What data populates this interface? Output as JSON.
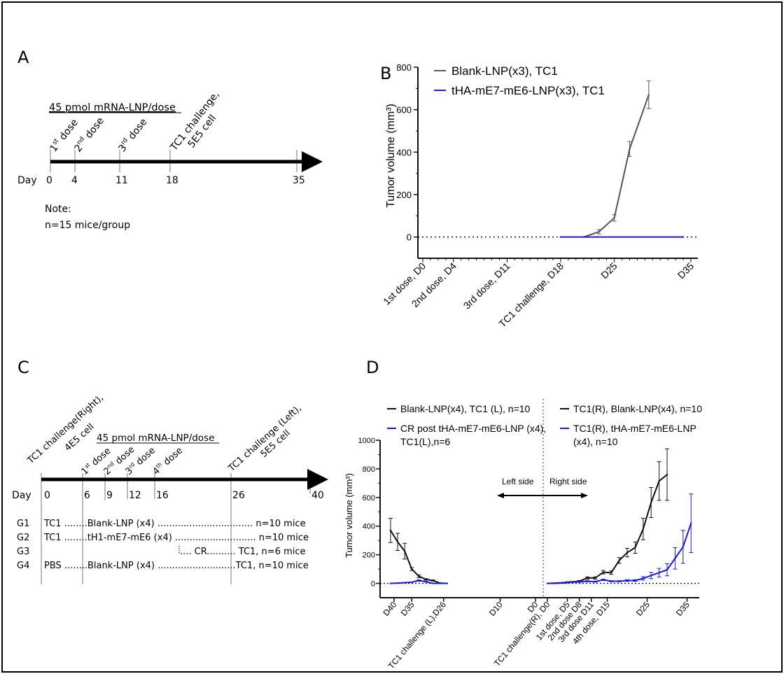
{
  "panel_a": {
    "letter": "A",
    "dose_header": "45 pmol mRNA-LNP/dose",
    "events": [
      {
        "num": "1",
        "sup": "st",
        "rest": " dose"
      },
      {
        "num": "2",
        "sup": "nd",
        "rest": " dose"
      },
      {
        "num": "3",
        "sup": "rd",
        "rest": " dose"
      },
      {
        "line1": "TC1 challenge,",
        "line2": "5E5 cell"
      }
    ],
    "day_label": "Day",
    "days": [
      "0",
      "4",
      "11",
      "18",
      "35"
    ],
    "note_title": "Note:",
    "note_text": "n=15 mice/group"
  },
  "panel_b": {
    "letter": "B"
  },
  "panel_c": {
    "letter": "C",
    "challenge_right": {
      "line1": "TC1 challenge(Right),",
      "line2": "4E5 cell"
    },
    "dose_header": "45 pmol mRNA-LNP/dose",
    "doses": [
      {
        "num": "1",
        "sup": "st",
        "rest": " dose"
      },
      {
        "num": "2",
        "sup": "nd",
        "rest": " dose"
      },
      {
        "num": "3",
        "sup": "rd",
        "rest": " dose"
      },
      {
        "num": "4",
        "sup": "th",
        "rest": " dose"
      }
    ],
    "challenge_left": {
      "line1": "TC1 challenge (Left),",
      "line2": "5E5 cell"
    },
    "day_label": "Day",
    "days": [
      "0",
      "6",
      "9",
      "12",
      "16",
      "26",
      "40"
    ],
    "groups": [
      {
        "id": "G1",
        "text": "TC1 ........Blank-LNP (x4) .................................  n=10 mice"
      },
      {
        "id": "G2",
        "text": "TC1 ........tH1-mE7-mE6 (x4) ............................  n=10 mice"
      },
      {
        "id": "G3",
        "text": ".... CR.......... TC1, n=6 mice"
      },
      {
        "id": "G4",
        "text": "PBS ........Blank-LNP (x4) ...........................TC1, n=10 mice"
      }
    ]
  },
  "panel_d": {
    "letter": "D",
    "left_side": "Left side",
    "right_side": "Right side"
  },
  "chart_data": [
    {
      "type": "line",
      "panel": "B",
      "ylabel": "Tumor volume (mm³)",
      "ylim": [
        -100,
        800
      ],
      "yticks": [
        0,
        200,
        400,
        600,
        800
      ],
      "xlim": [
        0,
        35
      ],
      "xticks": [
        {
          "day": 0,
          "label": "1st dose, D0"
        },
        {
          "day": 4,
          "label": "2nd dose, D4"
        },
        {
          "day": 11,
          "label": "3rd dose, D11"
        },
        {
          "day": 18,
          "label": "TC1 challenge, D18"
        },
        {
          "day": 25,
          "label": "D25"
        },
        {
          "day": 35,
          "label": "D35"
        }
      ],
      "legend_position": "top-left",
      "series": [
        {
          "name": "Blank-LNP(x3), TC1",
          "color": "#555555",
          "x": [
            21,
            23,
            25,
            27,
            29.5
          ],
          "y": [
            0,
            25,
            90,
            415,
            670
          ],
          "err": [
            0,
            10,
            15,
            35,
            65
          ]
        },
        {
          "name": "tHA-mE7-mE6-LNP(x3), TC1",
          "color": "#1a1adf",
          "x": [
            18,
            34
          ],
          "y": [
            0,
            0
          ],
          "err": [
            0,
            0
          ]
        }
      ]
    },
    {
      "type": "line",
      "panel": "D",
      "ylabel": "Tumor volume (mm³)",
      "ylim": [
        -100,
        1000
      ],
      "yticks": [
        0,
        200,
        400,
        600,
        800,
        1000
      ],
      "xticks": [
        {
          "side": "left",
          "day": 40,
          "label": "D40"
        },
        {
          "side": "left",
          "day": 35,
          "label": "D35"
        },
        {
          "side": "left",
          "day": 26,
          "label": "TC1 challenge (L),D26"
        },
        {
          "side": "left",
          "day": 10,
          "label": "D10"
        },
        {
          "side": "left",
          "day": 0,
          "label": "D0"
        },
        {
          "side": "right",
          "day": 0,
          "label": "TC1 challenge(R), D0"
        },
        {
          "side": "right",
          "day": 5,
          "label": "1st dose, D5"
        },
        {
          "side": "right",
          "day": 8,
          "label": "2nd dose D8"
        },
        {
          "side": "right",
          "day": 11,
          "label": "3rd dose D11"
        },
        {
          "side": "right",
          "day": 15,
          "label": "4th dose, D15"
        },
        {
          "side": "right",
          "day": 25,
          "label": "D25"
        },
        {
          "side": "right",
          "day": 35,
          "label": "D35"
        }
      ],
      "series": [
        {
          "name": "Blank-LNP(x4), TC1 (L), n=10",
          "side": "left",
          "color": "#111111",
          "x": [
            41,
            39,
            37,
            35,
            33,
            31,
            29,
            27,
            25
          ],
          "y": [
            370,
            290,
            225,
            100,
            50,
            28,
            20,
            2,
            0
          ],
          "err": [
            85,
            60,
            55,
            10,
            10,
            5,
            4,
            0,
            0
          ]
        },
        {
          "name": "CR post tHA-mE7-mE6-LNP (x4), TC1(L),n=6",
          "side": "left",
          "color": "#1a1adf",
          "x": [
            41,
            39,
            37,
            35,
            33,
            31,
            29,
            27,
            25
          ],
          "y": [
            0,
            2,
            5,
            8,
            20,
            12,
            0,
            0,
            0
          ],
          "err": [
            0,
            0,
            0,
            0,
            5,
            3,
            0,
            0,
            0
          ]
        },
        {
          "name": "TC1(R), Blank-LNP(x4), n=10",
          "side": "right",
          "color": "#111111",
          "x": [
            0,
            2,
            4,
            5,
            6,
            8,
            10,
            12,
            14,
            16,
            18,
            20,
            22,
            24,
            26,
            28,
            30
          ],
          "y": [
            0,
            2,
            5,
            8,
            10,
            15,
            38,
            38,
            78,
            75,
            160,
            215,
            250,
            380,
            565,
            715,
            760
          ],
          "err": [
            0,
            1,
            2,
            3,
            3,
            5,
            8,
            8,
            12,
            12,
            20,
            30,
            40,
            75,
            105,
            135,
            180
          ]
        },
        {
          "name": "TC1(R), tHA-mE7-mE6-LNP (x4), n=10",
          "side": "right",
          "color": "#1a1adf",
          "x": [
            0,
            2,
            4,
            5,
            6,
            8,
            10,
            12,
            14,
            16,
            18,
            20,
            22,
            24,
            26,
            28,
            30,
            32,
            34,
            36
          ],
          "y": [
            0,
            0,
            3,
            5,
            8,
            10,
            15,
            12,
            25,
            15,
            15,
            20,
            20,
            35,
            55,
            75,
            95,
            175,
            255,
            420
          ],
          "err": [
            0,
            0,
            1,
            2,
            2,
            3,
            4,
            4,
            5,
            4,
            4,
            6,
            6,
            12,
            22,
            30,
            42,
            75,
            115,
            205
          ]
        }
      ]
    }
  ]
}
